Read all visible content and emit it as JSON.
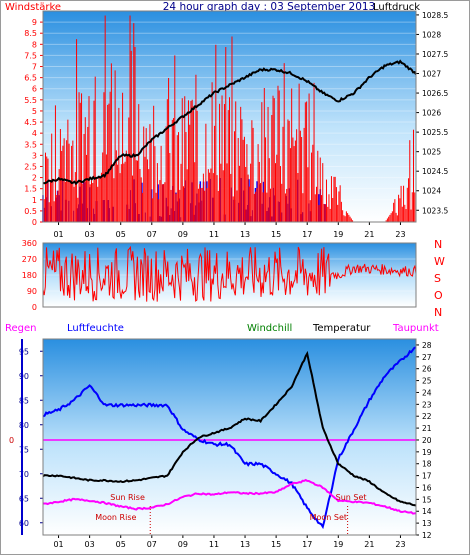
{
  "header": {
    "left_label": "Windstärke",
    "title": "24 hour graph day : 03 September 2013",
    "right_label": "Luftdruck"
  },
  "colors": {
    "wind": "#ff0000",
    "gust": "#0000ff",
    "pressure": "#000000",
    "temperature": "#000000",
    "humidity": "#0000ff",
    "dewpoint": "#ff00ff",
    "rain": "#ff00ff",
    "windchill": "#008000",
    "marker": "#cc0000"
  },
  "chart_data": [
    {
      "type": "bar",
      "panel": "wind-pressure",
      "x_ticks": [
        "01",
        "03",
        "05",
        "07",
        "09",
        "11",
        "13",
        "15",
        "17",
        "19",
        "21",
        "23"
      ],
      "y_left": {
        "label": "Windstärke",
        "ticks": [
          0,
          0.5,
          1,
          1.5,
          2,
          2.5,
          3,
          3.5,
          4,
          4.5,
          5,
          5.5,
          6,
          6.5,
          7,
          7.5,
          8,
          8.5,
          9
        ],
        "range": [
          0,
          9.5
        ]
      },
      "y_right": {
        "label": "Luftdruck",
        "ticks": [
          1023.5,
          1024,
          1024.5,
          1025,
          1025.5,
          1026,
          1026.5,
          1027,
          1027.5,
          1028,
          1028.5
        ],
        "range": [
          1023.2,
          1028.6
        ]
      },
      "series": [
        {
          "name": "Windstärke",
          "hours": [
            0,
            1,
            2,
            3,
            4,
            5,
            6,
            7,
            8,
            9,
            10,
            11,
            12,
            13,
            14,
            15,
            16,
            17,
            18,
            19,
            20,
            21,
            22,
            23,
            24
          ],
          "values": [
            2,
            3,
            3.5,
            4,
            4.5,
            5,
            4,
            3.5,
            3,
            3.5,
            4,
            4,
            3.5,
            3.5,
            3.5,
            4,
            3,
            3.5,
            2,
            1,
            0,
            0,
            0,
            1,
            2
          ]
        },
        {
          "name": "Luftdruck",
          "hours": [
            0,
            1,
            2,
            3,
            4,
            5,
            6,
            7,
            8,
            9,
            10,
            11,
            12,
            13,
            14,
            15,
            16,
            17,
            18,
            19,
            20,
            21,
            22,
            23,
            24
          ],
          "values": [
            1024.2,
            1024.3,
            1024.2,
            1024.3,
            1024.4,
            1024.9,
            1024.9,
            1025.3,
            1025.6,
            1025.9,
            1026.2,
            1026.5,
            1026.7,
            1026.9,
            1027.1,
            1027.1,
            1027.0,
            1026.8,
            1026.5,
            1026.3,
            1026.5,
            1026.9,
            1027.2,
            1027.3,
            1027.0
          ]
        }
      ]
    },
    {
      "type": "line",
      "panel": "wind-direction",
      "y_ticks": [
        0,
        90,
        180,
        270,
        360
      ],
      "y_range": [
        0,
        360
      ],
      "compass": [
        "N",
        "W",
        "S",
        "O",
        "N"
      ],
      "series": [
        {
          "name": "Windrichtung",
          "hours": [
            0,
            2,
            4,
            6,
            8,
            10,
            12,
            14,
            16,
            18,
            19,
            20,
            22,
            24
          ],
          "values": [
            180,
            200,
            160,
            190,
            170,
            200,
            180,
            190,
            170,
            200,
            180,
            220,
            210,
            200
          ]
        }
      ]
    },
    {
      "type": "line",
      "panel": "temperature-humidity",
      "legend": [
        "Regen",
        "Luftfeuchte",
        "Windchill",
        "Temperatur",
        "Taupunkt"
      ],
      "x_ticks": [
        "01",
        "03",
        "05",
        "07",
        "09",
        "11",
        "13",
        "15",
        "17",
        "19",
        "21",
        "23"
      ],
      "y_left": {
        "label": "Luftfeuchte",
        "ticks": [
          60,
          65,
          70,
          75,
          80,
          85,
          90,
          95
        ],
        "range": [
          57.5,
          97.5
        ]
      },
      "y_right": {
        "label": "Temperatur",
        "ticks": [
          12,
          13,
          14,
          15,
          16,
          17,
          18,
          19,
          20,
          21,
          22,
          23,
          24,
          25,
          26,
          27,
          28
        ],
        "range": [
          12,
          28.5
        ]
      },
      "rain_label": "0",
      "series": [
        {
          "name": "Luftfeuchte",
          "hours": [
            0,
            1,
            2,
            3,
            4,
            5,
            6,
            7,
            8,
            9,
            10,
            11,
            12,
            13,
            14,
            15,
            16,
            17,
            18,
            19,
            20,
            21,
            22,
            23,
            24
          ],
          "values": [
            82,
            83,
            85,
            88,
            84,
            84,
            84,
            84,
            84,
            79,
            77,
            76,
            76,
            72,
            72,
            70,
            68,
            63,
            59,
            73,
            79,
            85,
            90,
            93,
            96
          ]
        },
        {
          "name": "Temperatur",
          "hours": [
            0,
            1,
            2,
            3,
            4,
            5,
            6,
            7,
            8,
            9,
            10,
            11,
            12,
            13,
            14,
            15,
            16,
            17,
            18,
            19,
            20,
            21,
            22,
            23,
            24
          ],
          "values": [
            17,
            17,
            16.8,
            16.6,
            16.6,
            16.5,
            16.6,
            16.8,
            17,
            19,
            20.2,
            20.6,
            21,
            21.8,
            21.6,
            23,
            24.5,
            27.3,
            21,
            18,
            17,
            16.5,
            15.5,
            14.8,
            14.5
          ]
        },
        {
          "name": "Taupunkt",
          "hours": [
            0,
            1,
            2,
            3,
            4,
            5,
            6,
            7,
            8,
            9,
            10,
            11,
            12,
            13,
            14,
            15,
            16,
            17,
            18,
            19,
            20,
            21,
            22,
            23,
            24
          ],
          "values": [
            14.6,
            14.8,
            15,
            14.9,
            14.7,
            14.4,
            14.2,
            14.3,
            14.6,
            15.2,
            15.5,
            15.4,
            15.6,
            15.5,
            15.5,
            15.6,
            16.3,
            16.6,
            16,
            14.9,
            14.8,
            14.7,
            14.4,
            14,
            13.8
          ]
        }
      ],
      "annotations": [
        {
          "text": "Sun Rise",
          "hour": 6.9
        },
        {
          "text": "Moon Rise",
          "hour": 6.9
        },
        {
          "text": "Sun Set",
          "hour": 19.6
        },
        {
          "text": "Moon Set",
          "hour": 19.6
        }
      ]
    }
  ]
}
